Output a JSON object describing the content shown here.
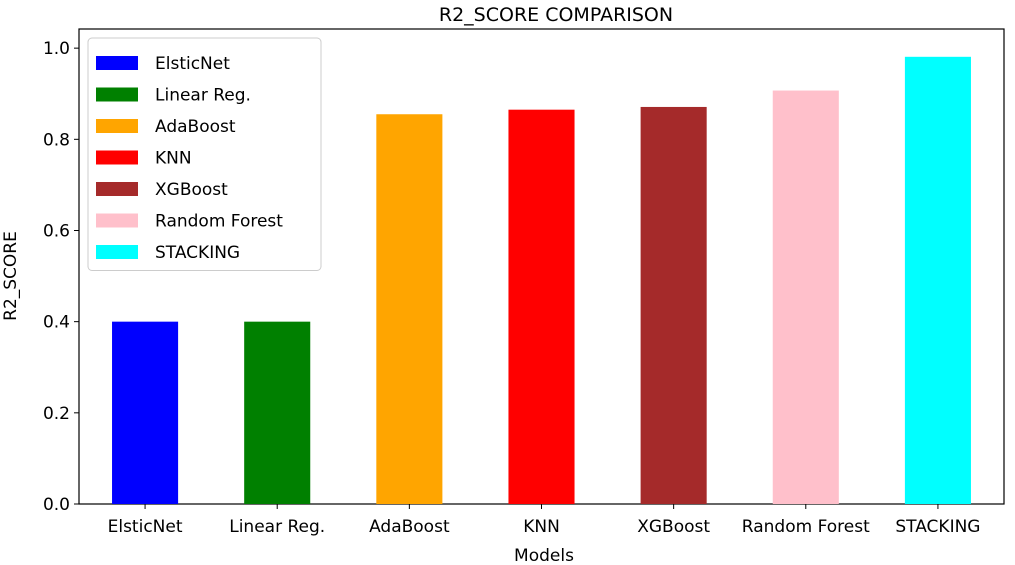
{
  "chart_data": {
    "type": "bar",
    "title": "R2_SCORE COMPARISON",
    "xlabel": "Models",
    "ylabel": "R2_SCORE",
    "categories": [
      "ElsticNet",
      "Linear Reg.",
      "AdaBoost",
      "KNN",
      "XGBoost",
      "Random Forest",
      "STACKING"
    ],
    "values": [
      0.4,
      0.4,
      0.855,
      0.865,
      0.871,
      0.907,
      0.981
    ],
    "colors": [
      "#0000ff",
      "#008000",
      "#ffa500",
      "#ff0000",
      "#a52a2a",
      "#ffc0cb",
      "#00ffff"
    ],
    "ylim": [
      0,
      1.0
    ],
    "yticks": [
      "0.0",
      "0.2",
      "0.4",
      "0.6",
      "0.8",
      "1.0"
    ],
    "ytick_values": [
      0,
      0.2,
      0.4,
      0.6,
      0.8,
      1.0
    ],
    "grid": false,
    "legend": {
      "placement": "upper-left",
      "entries": [
        "ElsticNet",
        "Linear Reg.",
        "AdaBoost",
        "KNN",
        "XGBoost",
        "Random Forest",
        "STACKING"
      ]
    }
  }
}
